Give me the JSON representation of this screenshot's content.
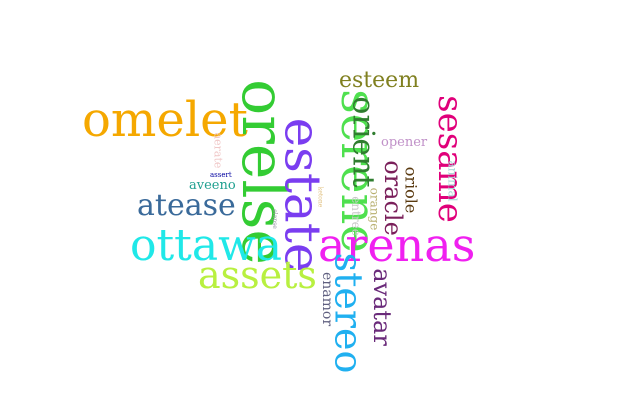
{
  "words": [
    {
      "text": "omelet",
      "color": "#F5A800"
    },
    {
      "text": "orelse",
      "color": "#33CC33"
    },
    {
      "text": "estate",
      "color": "#7A3DF0"
    },
    {
      "text": "serene",
      "color": "#4FE04F"
    },
    {
      "text": "orient",
      "color": "#2F7D2F"
    },
    {
      "text": "esteem",
      "color": "#808020"
    },
    {
      "text": "sesame",
      "color": "#E0007A"
    },
    {
      "text": "opener",
      "color": "#C090C8"
    },
    {
      "text": "animal",
      "color": "#A8D8D8"
    },
    {
      "text": "oracle",
      "color": "#7A1F5A"
    },
    {
      "text": "oriole",
      "color": "#5A3A10"
    },
    {
      "text": "orange",
      "color": "#B8B070"
    },
    {
      "text": "entree",
      "color": "#C8C8C8"
    },
    {
      "text": "aerate",
      "color": "#F0C8C8"
    },
    {
      "text": "assert",
      "color": "#0000A0"
    },
    {
      "text": "aveeno",
      "color": "#20A090"
    },
    {
      "text": "atease",
      "color": "#3A6A9A"
    },
    {
      "text": "elapse",
      "color": "#9090A0"
    },
    {
      "text": "ketone",
      "color": "#E0C080"
    },
    {
      "text": "ottawa",
      "color": "#20E8E8"
    },
    {
      "text": "arenas",
      "color": "#F020F0"
    },
    {
      "text": "assets",
      "color": "#B8F040"
    },
    {
      "text": "stereo",
      "color": "#20B0F0"
    },
    {
      "text": "avatar",
      "color": "#6A2A7A"
    },
    {
      "text": "enamor",
      "color": "#606080"
    }
  ]
}
